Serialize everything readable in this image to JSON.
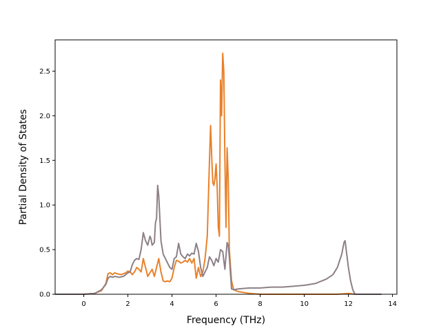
{
  "chart_data": {
    "type": "line",
    "title": "",
    "xlabel": "Frequency (THz)",
    "ylabel": "Partial Density of States",
    "xlim": [
      -1.3,
      14.2
    ],
    "ylim": [
      0.0,
      2.85
    ],
    "xticks": [
      0,
      2,
      4,
      6,
      8,
      10,
      12,
      14
    ],
    "xtick_labels": [
      "0",
      "2",
      "4",
      "6",
      "8",
      "10",
      "12",
      "14"
    ],
    "yticks": [
      0.0,
      0.5,
      1.0,
      1.5,
      2.0,
      2.5
    ],
    "ytick_labels": [
      "0.0",
      "0.5",
      "1.0",
      "1.5",
      "2.0",
      "2.5"
    ],
    "grid": false,
    "legend": "none",
    "series": [
      {
        "color": "#e8812a",
        "points": [
          [
            -1.3,
            0.0
          ],
          [
            0.0,
            0.0
          ],
          [
            0.5,
            0.01
          ],
          [
            0.8,
            0.04
          ],
          [
            1.0,
            0.12
          ],
          [
            1.1,
            0.23
          ],
          [
            1.2,
            0.24
          ],
          [
            1.3,
            0.22
          ],
          [
            1.4,
            0.24
          ],
          [
            1.5,
            0.23
          ],
          [
            1.7,
            0.22
          ],
          [
            1.9,
            0.24
          ],
          [
            2.0,
            0.26
          ],
          [
            2.1,
            0.25
          ],
          [
            2.2,
            0.22
          ],
          [
            2.3,
            0.25
          ],
          [
            2.4,
            0.3
          ],
          [
            2.5,
            0.28
          ],
          [
            2.6,
            0.25
          ],
          [
            2.7,
            0.4
          ],
          [
            2.8,
            0.3
          ],
          [
            2.9,
            0.2
          ],
          [
            3.0,
            0.24
          ],
          [
            3.1,
            0.28
          ],
          [
            3.2,
            0.2
          ],
          [
            3.3,
            0.3
          ],
          [
            3.4,
            0.4
          ],
          [
            3.5,
            0.25
          ],
          [
            3.6,
            0.15
          ],
          [
            3.7,
            0.14
          ],
          [
            3.8,
            0.15
          ],
          [
            3.9,
            0.14
          ],
          [
            4.0,
            0.18
          ],
          [
            4.1,
            0.3
          ],
          [
            4.2,
            0.38
          ],
          [
            4.3,
            0.37
          ],
          [
            4.4,
            0.35
          ],
          [
            4.5,
            0.36
          ],
          [
            4.6,
            0.38
          ],
          [
            4.7,
            0.36
          ],
          [
            4.8,
            0.4
          ],
          [
            4.9,
            0.35
          ],
          [
            5.0,
            0.4
          ],
          [
            5.1,
            0.18
          ],
          [
            5.2,
            0.3
          ],
          [
            5.3,
            0.2
          ],
          [
            5.4,
            0.25
          ],
          [
            5.5,
            0.4
          ],
          [
            5.6,
            0.65
          ],
          [
            5.7,
            1.5
          ],
          [
            5.75,
            1.89
          ],
          [
            5.8,
            1.55
          ],
          [
            5.85,
            1.25
          ],
          [
            5.9,
            1.22
          ],
          [
            5.95,
            1.3
          ],
          [
            6.0,
            1.46
          ],
          [
            6.05,
            1.2
          ],
          [
            6.1,
            0.75
          ],
          [
            6.15,
            0.65
          ],
          [
            6.2,
            2.4
          ],
          [
            6.25,
            2.0
          ],
          [
            6.3,
            2.7
          ],
          [
            6.35,
            2.5
          ],
          [
            6.4,
            1.5
          ],
          [
            6.45,
            0.75
          ],
          [
            6.5,
            1.64
          ],
          [
            6.55,
            1.3
          ],
          [
            6.6,
            0.5
          ],
          [
            6.7,
            0.15
          ],
          [
            6.8,
            0.05
          ],
          [
            7.0,
            0.03
          ],
          [
            7.5,
            0.01
          ],
          [
            8.0,
            0.0
          ],
          [
            10.0,
            0.0
          ],
          [
            11.5,
            0.0
          ],
          [
            12.0,
            0.01
          ],
          [
            12.3,
            0.0
          ],
          [
            13.5,
            0.0
          ]
        ]
      },
      {
        "color": "#8c7f86",
        "points": [
          [
            -1.3,
            0.0
          ],
          [
            0.0,
            0.0
          ],
          [
            0.5,
            0.01
          ],
          [
            0.8,
            0.05
          ],
          [
            1.0,
            0.11
          ],
          [
            1.1,
            0.18
          ],
          [
            1.2,
            0.2
          ],
          [
            1.3,
            0.19
          ],
          [
            1.4,
            0.2
          ],
          [
            1.6,
            0.19
          ],
          [
            1.8,
            0.2
          ],
          [
            2.0,
            0.24
          ],
          [
            2.1,
            0.25
          ],
          [
            2.2,
            0.33
          ],
          [
            2.3,
            0.38
          ],
          [
            2.4,
            0.4
          ],
          [
            2.5,
            0.39
          ],
          [
            2.6,
            0.5
          ],
          [
            2.7,
            0.69
          ],
          [
            2.8,
            0.6
          ],
          [
            2.9,
            0.55
          ],
          [
            3.0,
            0.65
          ],
          [
            3.05,
            0.62
          ],
          [
            3.1,
            0.55
          ],
          [
            3.2,
            0.58
          ],
          [
            3.25,
            0.8
          ],
          [
            3.3,
            0.85
          ],
          [
            3.35,
            1.22
          ],
          [
            3.4,
            1.1
          ],
          [
            3.45,
            0.85
          ],
          [
            3.5,
            0.6
          ],
          [
            3.6,
            0.45
          ],
          [
            3.7,
            0.4
          ],
          [
            3.8,
            0.35
          ],
          [
            3.9,
            0.3
          ],
          [
            4.0,
            0.28
          ],
          [
            4.1,
            0.4
          ],
          [
            4.2,
            0.42
          ],
          [
            4.3,
            0.57
          ],
          [
            4.4,
            0.45
          ],
          [
            4.5,
            0.42
          ],
          [
            4.6,
            0.4
          ],
          [
            4.7,
            0.45
          ],
          [
            4.8,
            0.43
          ],
          [
            4.9,
            0.46
          ],
          [
            5.0,
            0.45
          ],
          [
            5.1,
            0.57
          ],
          [
            5.2,
            0.48
          ],
          [
            5.3,
            0.3
          ],
          [
            5.4,
            0.2
          ],
          [
            5.5,
            0.25
          ],
          [
            5.6,
            0.3
          ],
          [
            5.7,
            0.42
          ],
          [
            5.8,
            0.38
          ],
          [
            5.9,
            0.32
          ],
          [
            6.0,
            0.4
          ],
          [
            6.1,
            0.36
          ],
          [
            6.2,
            0.5
          ],
          [
            6.3,
            0.48
          ],
          [
            6.4,
            0.28
          ],
          [
            6.5,
            0.58
          ],
          [
            6.55,
            0.55
          ],
          [
            6.6,
            0.42
          ],
          [
            6.7,
            0.06
          ],
          [
            6.8,
            0.05
          ],
          [
            7.0,
            0.06
          ],
          [
            7.5,
            0.07
          ],
          [
            8.0,
            0.07
          ],
          [
            8.5,
            0.08
          ],
          [
            9.0,
            0.08
          ],
          [
            9.5,
            0.09
          ],
          [
            10.0,
            0.1
          ],
          [
            10.5,
            0.12
          ],
          [
            11.0,
            0.17
          ],
          [
            11.3,
            0.22
          ],
          [
            11.5,
            0.3
          ],
          [
            11.7,
            0.45
          ],
          [
            11.8,
            0.58
          ],
          [
            11.85,
            0.6
          ],
          [
            11.9,
            0.5
          ],
          [
            12.0,
            0.3
          ],
          [
            12.1,
            0.15
          ],
          [
            12.2,
            0.05
          ],
          [
            12.3,
            0.0
          ],
          [
            13.5,
            0.0
          ]
        ]
      }
    ]
  }
}
